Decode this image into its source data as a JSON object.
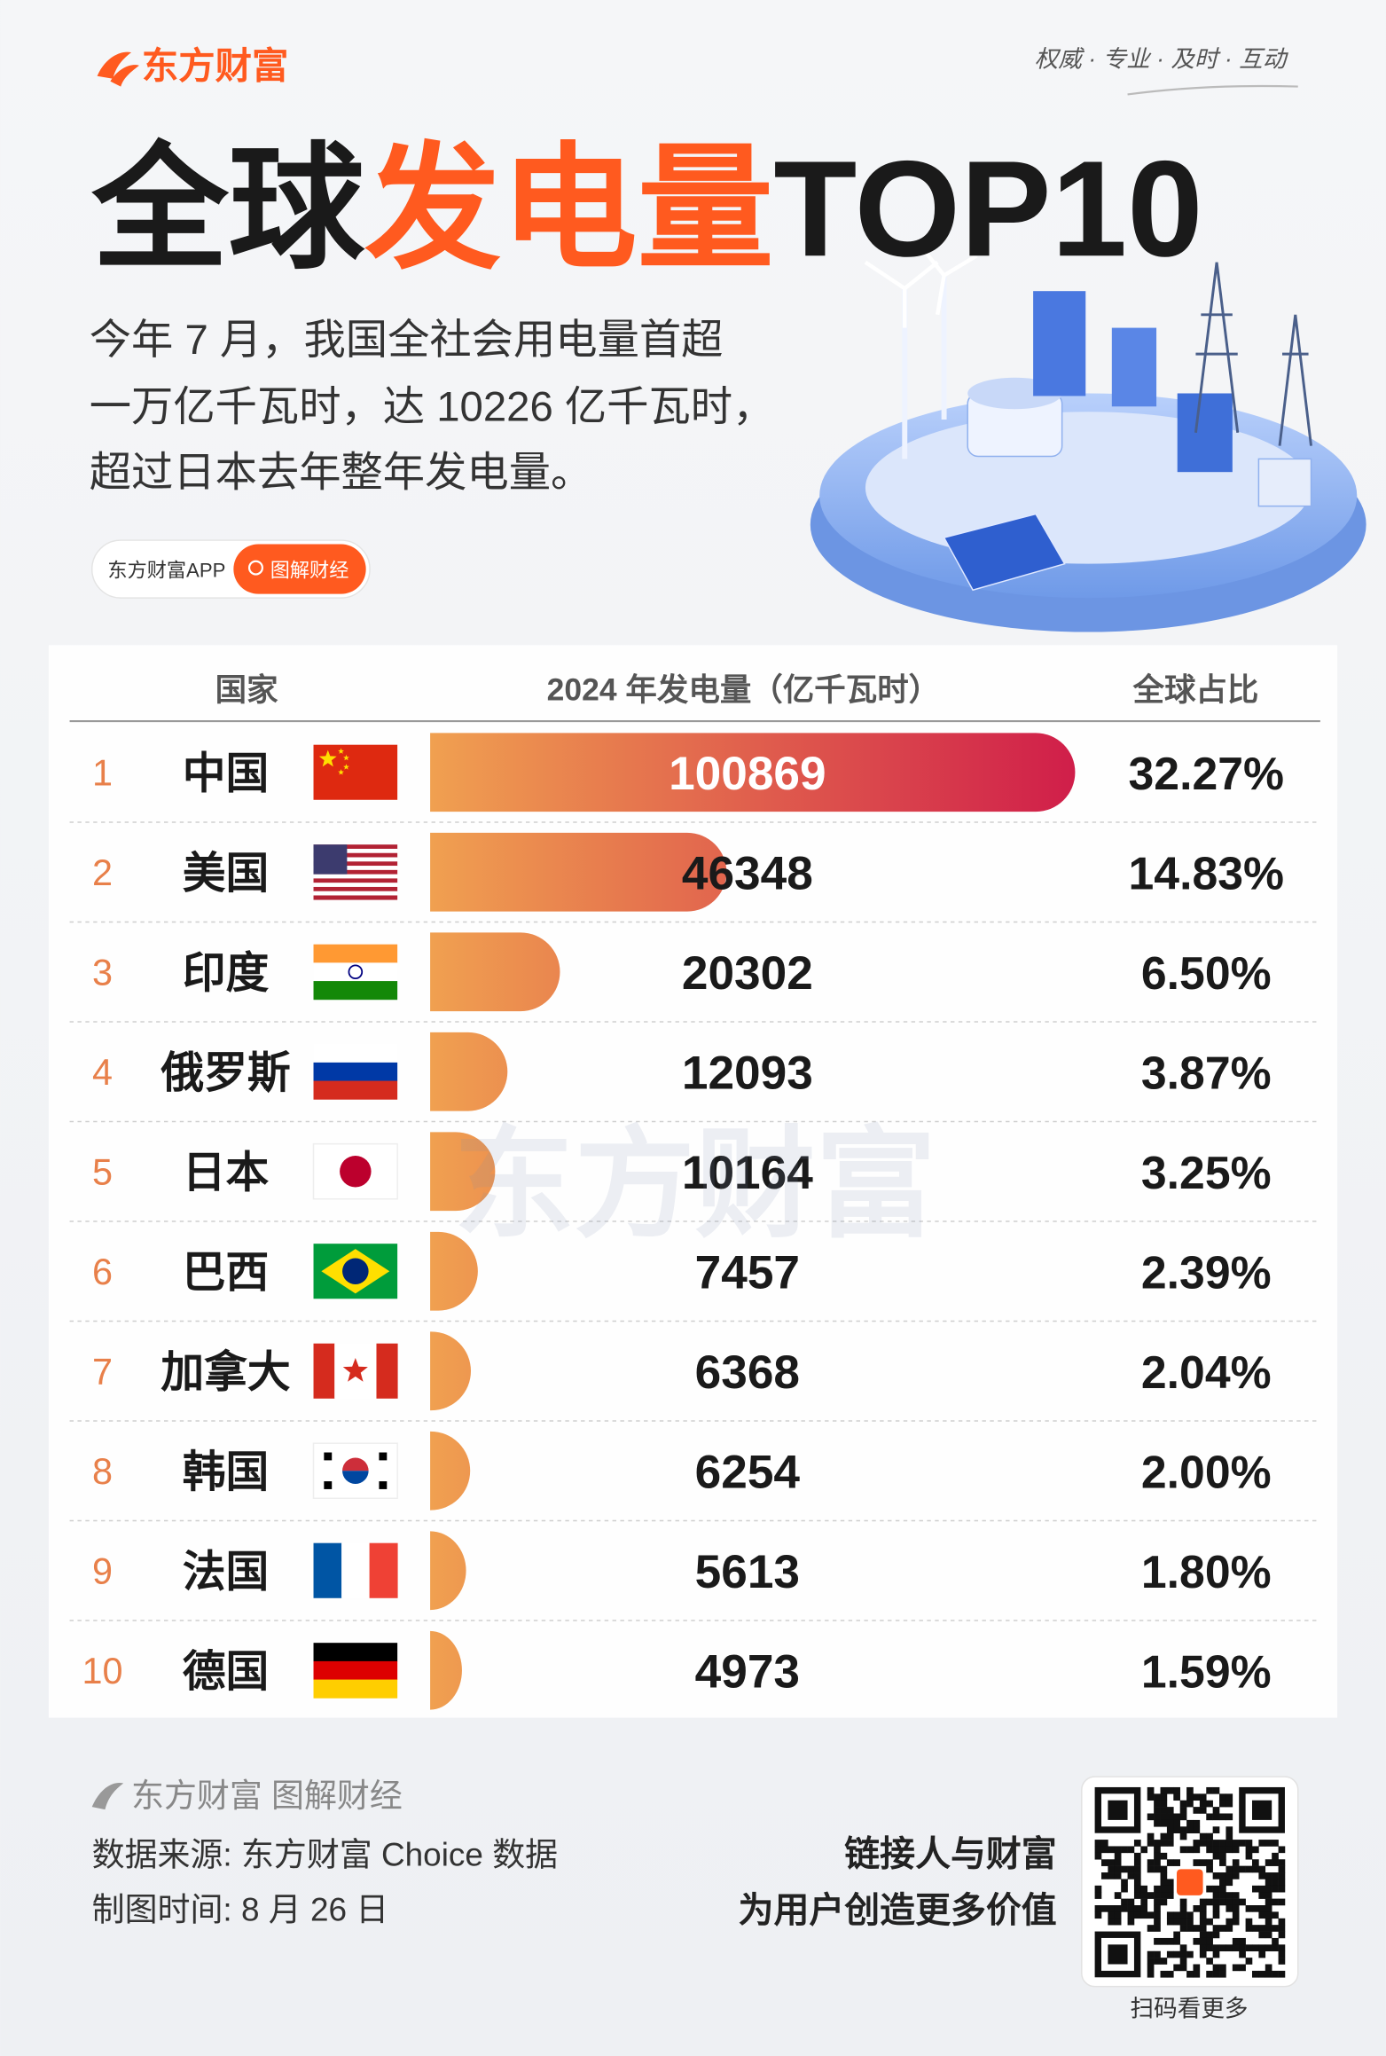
{
  "header": {
    "brand": "东方财富",
    "tagline": "权威 · 专业 · 及时 · 互动",
    "title": [
      "全球",
      "发电量",
      "TOP10"
    ],
    "subtitle": [
      "今年 7 月，我国全社会用电量首超",
      "一万亿千瓦时，达 10226 亿千瓦时，",
      "超过日本去年整年发电量。"
    ],
    "app_button": "东方财富APP",
    "tag_button": "图解财经"
  },
  "chart_data": {
    "type": "bar",
    "orientation": "horizontal",
    "column_headers": [
      "国家",
      "全球占比"
    ],
    "ranks": [
      1,
      2,
      3,
      4,
      5,
      6,
      7,
      8,
      9,
      10
    ],
    "categories": [
      "中国",
      "美国",
      "印度",
      "俄罗斯",
      "日本",
      "巴西",
      "加拿大",
      "韩国",
      "法国",
      "德国"
    ],
    "series": [
      {
        "name": "2024 年发电量（亿千瓦时）",
        "color": "#f0a050",
        "color_end": "#d01e4a",
        "values": [
          100869,
          46348,
          20302,
          12093,
          10164,
          7457,
          6368,
          6254,
          5613,
          4973
        ]
      }
    ],
    "shares": {
      "values": [
        32.27,
        14.83,
        6.5,
        3.87,
        3.25,
        2.39,
        2.04,
        2.0,
        1.8,
        1.59
      ],
      "value_labels": [
        "32.27%",
        "14.83%",
        "6.50%",
        "3.87%",
        "3.25%",
        "2.39%",
        "2.04%",
        "2.00%",
        "1.80%",
        "1.59%"
      ]
    },
    "watermark": "东方财富"
  },
  "footer": {
    "brand": "东方财富 图解财经",
    "source": "数据来源: 东方财富 Choice 数据",
    "date": "制图时间: 8 月 26 日",
    "slogan": [
      "链接人与财富",
      "为用户创造更多价值"
    ],
    "qr_caption": "扫码看更多"
  }
}
